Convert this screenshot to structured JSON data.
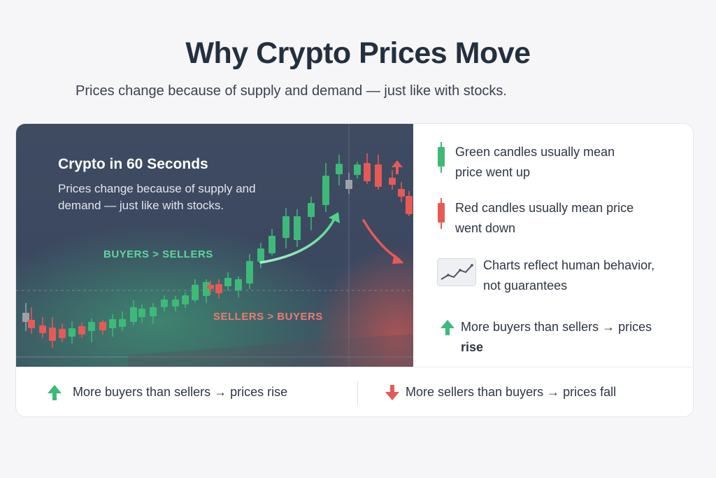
{
  "page": {
    "title": "Why Crypto Prices Move",
    "subtitle": "Prices change because of supply and demand — just like with stocks."
  },
  "chart_panel": {
    "title": "Crypto in 60 Seconds",
    "description": "Prices change because of supply and demand — just like with stocks.",
    "label_buyers": "BUYERS > SELLERS",
    "label_sellers": "SELLERS > BUYERS"
  },
  "legend": {
    "green_text": "Green candles usually mean price went up",
    "red_text": "Red candles usually mean price went down",
    "chart_text": "Charts reflect human behavior, not guarantees",
    "rise_prefix": "More buyers than sellers → prices",
    "rise_word": "rise"
  },
  "bottom": {
    "rise_text": "More buyers than sellers → prices rise",
    "fall_text": "More sellers than buyers → prices fall"
  },
  "colors": {
    "green": "#3dba78",
    "red": "#e65a55",
    "panel_bg": "#3f4b61",
    "title": "#24303f"
  },
  "icons": [
    "green-candle-icon",
    "red-candle-icon",
    "line-chart-icon",
    "up-arrow-icon",
    "down-arrow-icon"
  ]
}
